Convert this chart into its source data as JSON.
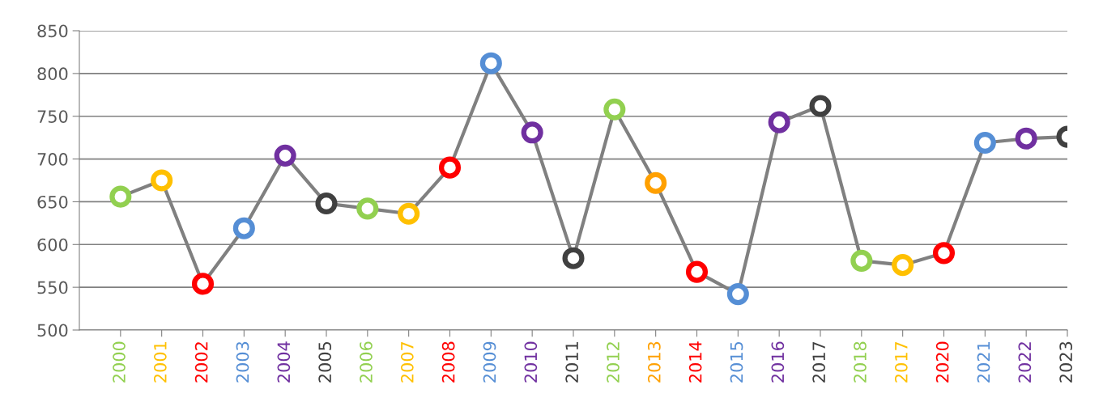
{
  "chart_data": {
    "type": "line",
    "categories": [
      "2000",
      "2001",
      "2002",
      "2003",
      "2004",
      "2005",
      "2006",
      "2007",
      "2008",
      "2009",
      "2010",
      "2011",
      "2012",
      "2013",
      "2014",
      "2015",
      "2016",
      "2017",
      "2018",
      "2017",
      "2020",
      "2021",
      "2022",
      "2023"
    ],
    "series": [
      {
        "color": "#808080",
        "values": [
          656,
          675,
          554,
          619,
          704,
          648,
          642,
          636,
          690,
          812,
          731,
          584,
          758,
          672,
          568,
          542,
          743,
          762,
          581,
          576,
          590,
          719,
          724,
          726
        ],
        "colors": [
          "#92d050",
          "#ffc000",
          "#ff0000",
          "#558ed5",
          "#7030a0",
          "#404040",
          "#92d050",
          "#ffc000",
          "#ff0000",
          "#558ed5",
          "#7030a0",
          "#404040",
          "#92d050",
          "#ffa000",
          "#ff0000",
          "#558ed5",
          "#7030a0",
          "#404040",
          "#92d050",
          "#ffc000",
          "#ff0000",
          "#558ed5",
          "#7030a0",
          "#404040"
        ]
      }
    ],
    "ylim": [
      500,
      850
    ],
    "yticks": [
      500,
      550,
      600,
      650,
      700,
      750,
      800,
      850
    ],
    "grid": "y",
    "marker": "circle",
    "line_style": "solid",
    "legend": false
  }
}
